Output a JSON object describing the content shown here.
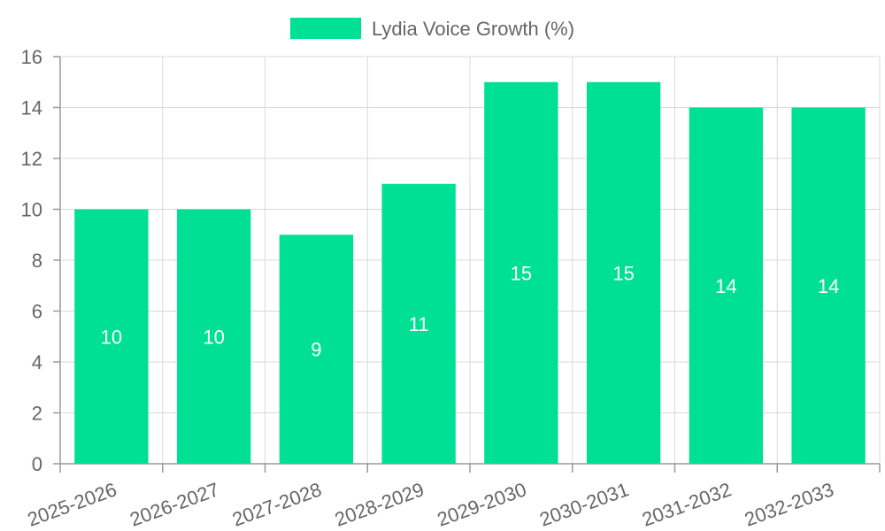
{
  "chart_data": {
    "type": "bar",
    "categories": [
      "2025-2026",
      "2026-2027",
      "2027-2028",
      "2028-2029",
      "2029-2030",
      "2030-2031",
      "2031-2032",
      "2032-2033"
    ],
    "series": [
      {
        "name": "Lydia Voice Growth (%)",
        "values": [
          10,
          10,
          9,
          11,
          15,
          15,
          14,
          14
        ],
        "color": "#00e095"
      }
    ],
    "ylim": [
      0,
      16
    ],
    "yticks": [
      0,
      2,
      4,
      6,
      8,
      10,
      12,
      14,
      16
    ],
    "grid": true,
    "legend": "top-center",
    "data_labels": true,
    "xlabel": "",
    "ylabel": "",
    "title": ""
  },
  "colors": {
    "bar": "#00e095",
    "grid": "#d9d9d9",
    "axis": "#9a9a9a",
    "text": "#666666",
    "data_label": "#ffffff"
  }
}
